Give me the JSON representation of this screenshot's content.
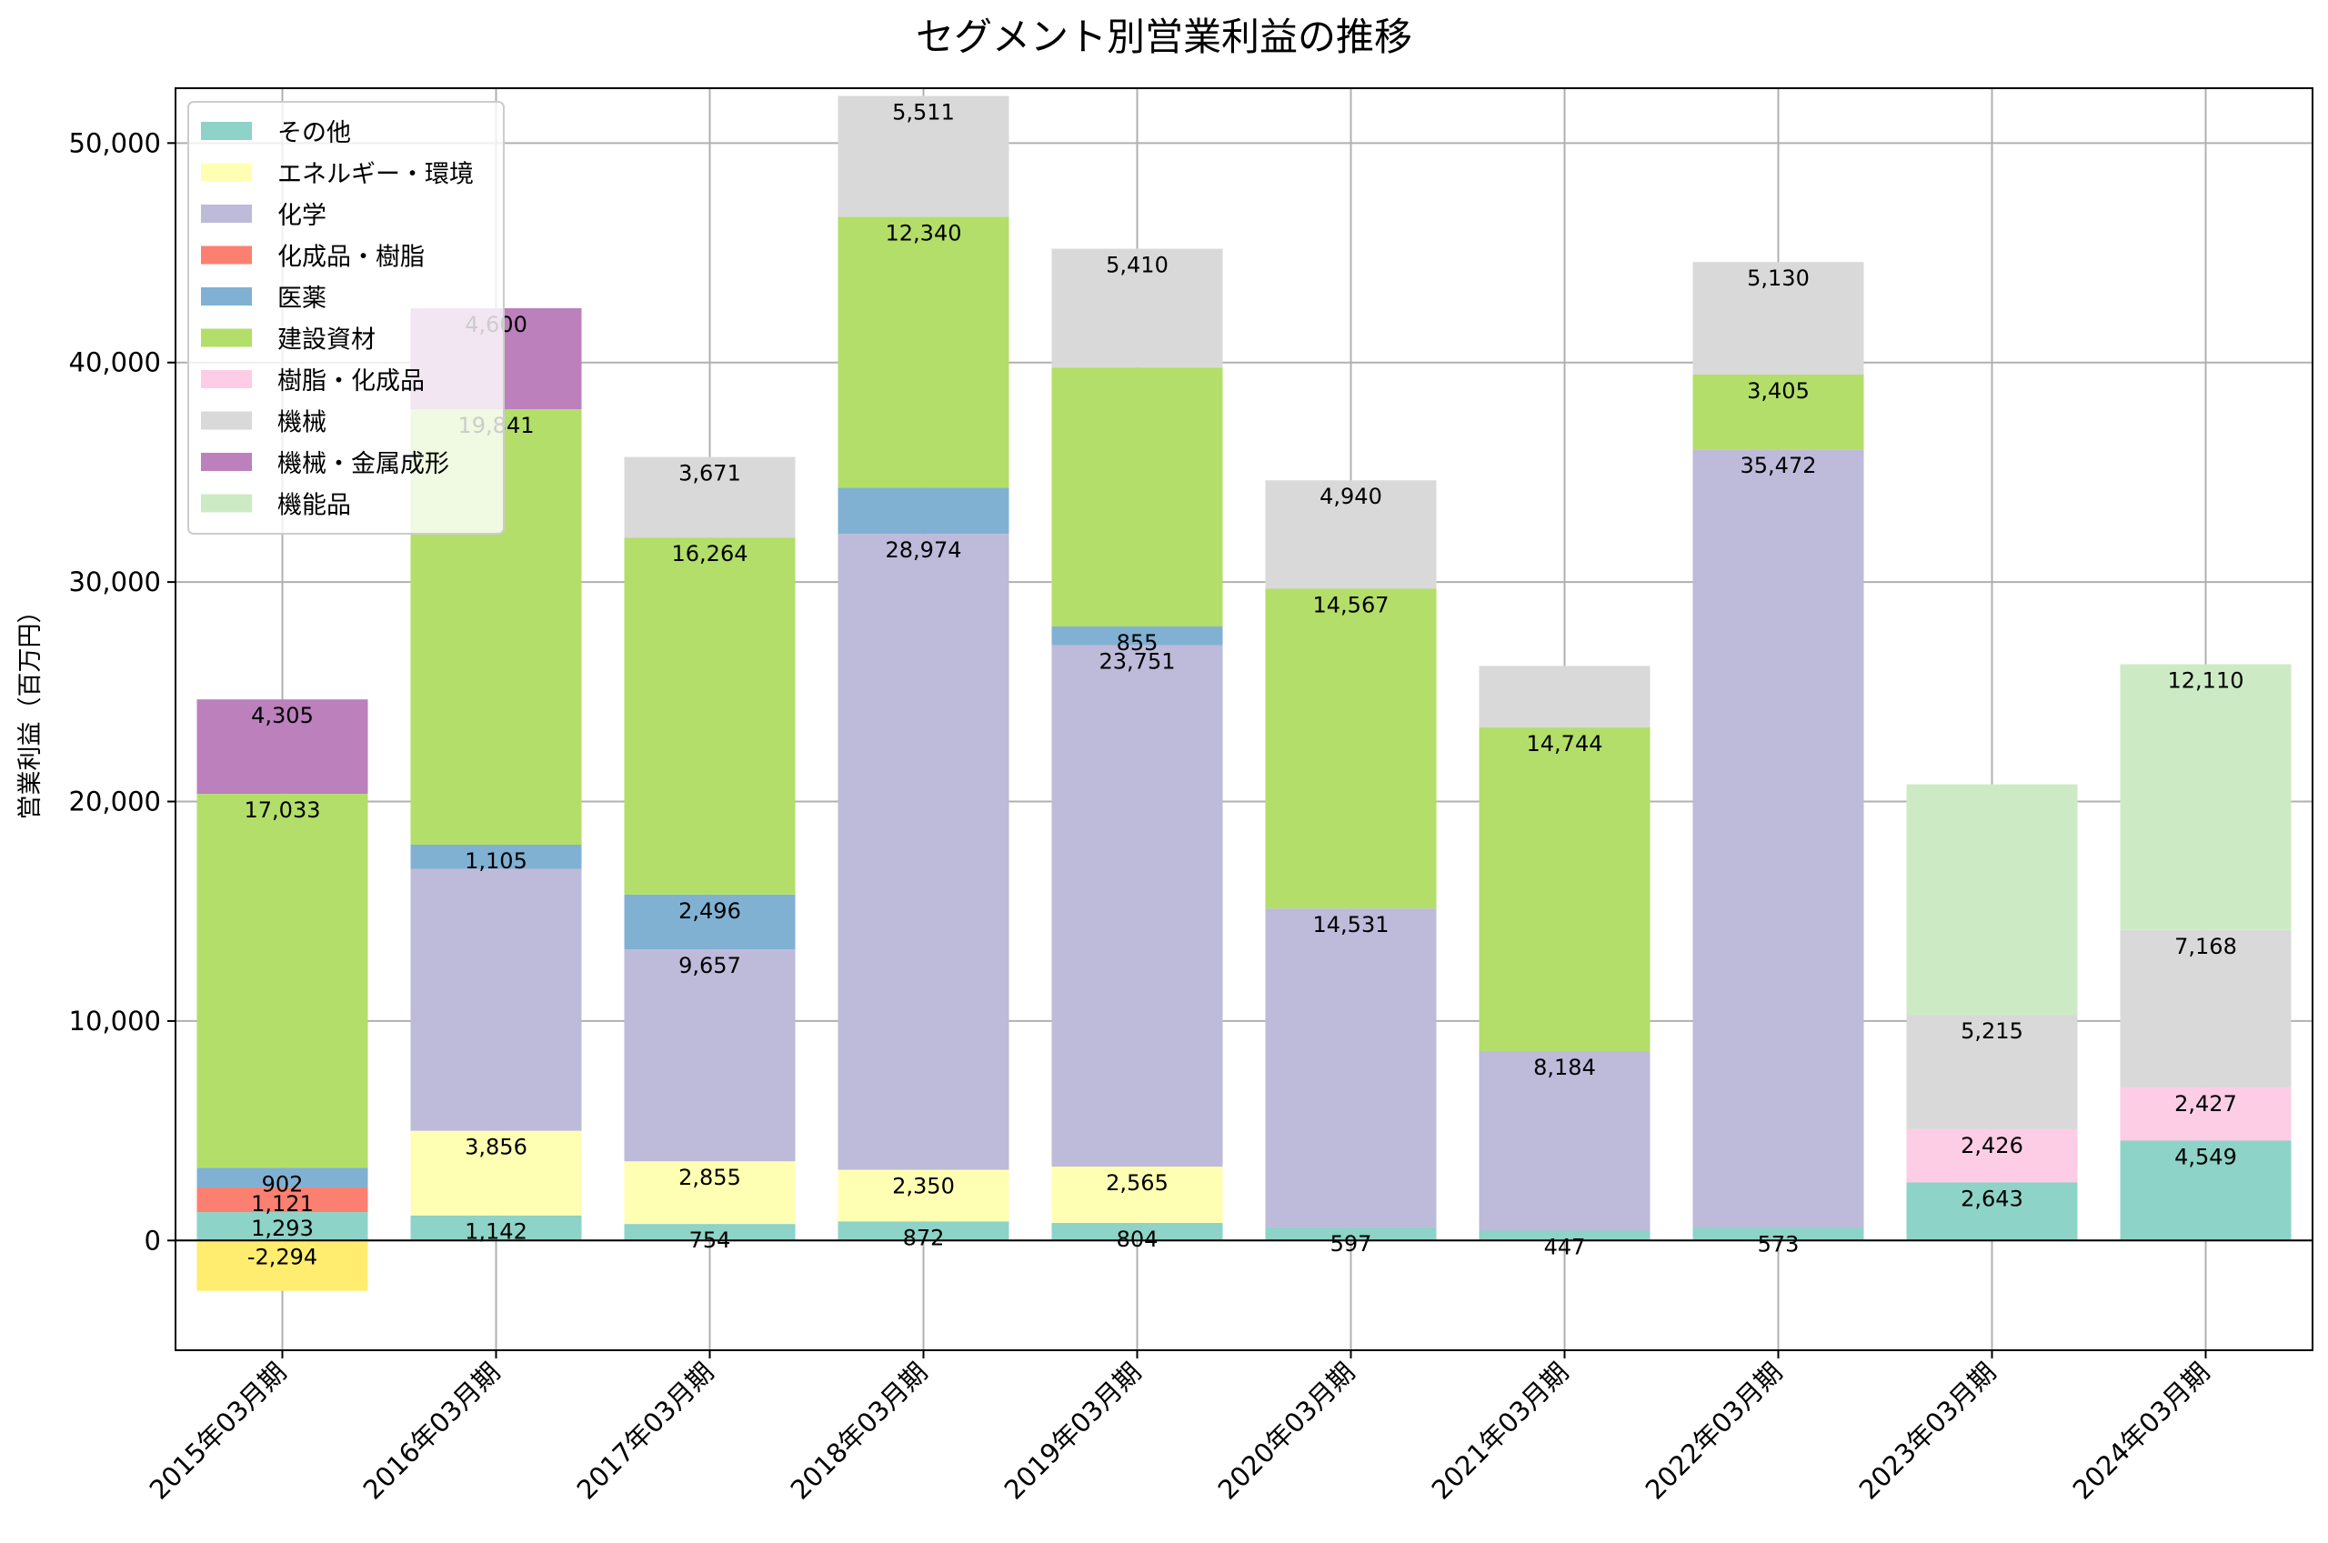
{
  "chart_data": {
    "type": "bar",
    "stacked": true,
    "title": "セグメント別営業利益の推移",
    "xlabel": "",
    "ylabel": "営業利益（百万円）",
    "ylim": [
      -5000,
      52500
    ],
    "yticks": [
      0,
      10000,
      20000,
      30000,
      40000,
      50000
    ],
    "ytick_labels": [
      "0",
      "10,000",
      "20,000",
      "30,000",
      "40,000",
      "50,000"
    ],
    "grid": true,
    "legend_position": "top-left",
    "categories": [
      "2015年03月期",
      "2016年03月期",
      "2017年03月期",
      "2018年03月期",
      "2019年03月期",
      "2020年03月期",
      "2021年03月期",
      "2022年03月期",
      "2023年03月期",
      "2024年03月期"
    ],
    "series": [
      {
        "name": "その他",
        "color": "#8dd3c7",
        "values": [
          1293,
          1142,
          754,
          872,
          804,
          597,
          447,
          573,
          2643,
          4549
        ]
      },
      {
        "name": "エネルギー・環境",
        "color": "#ffffb3",
        "values": [
          -2294,
          3856,
          2855,
          2350,
          2565,
          null,
          null,
          null,
          null,
          null
        ]
      },
      {
        "name": "化学",
        "color": "#bebada",
        "values": [
          null,
          11932,
          9657,
          28974,
          23751,
          14531,
          8184,
          35472,
          null,
          null
        ]
      },
      {
        "name": "化成品・樹脂",
        "color": "#fb8072",
        "values": [
          1121,
          null,
          null,
          null,
          null,
          null,
          null,
          null,
          null,
          null
        ]
      },
      {
        "name": "医薬",
        "color": "#80b1d3",
        "values": [
          902,
          1105,
          2496,
          2100,
          855,
          null,
          null,
          null,
          null,
          null
        ]
      },
      {
        "name": "建設資材",
        "color": "#b3de69",
        "values": [
          17033,
          19841,
          16264,
          12340,
          11800,
          14567,
          14744,
          3405,
          null,
          null
        ]
      },
      {
        "name": "樹脂・化成品",
        "color": "#fccde5",
        "values": [
          null,
          null,
          null,
          null,
          null,
          null,
          null,
          null,
          2426,
          2427
        ]
      },
      {
        "name": "機械",
        "color": "#d9d9d9",
        "values": [
          null,
          null,
          3671,
          5511,
          5410,
          4940,
          2800,
          5130,
          5215,
          7168
        ]
      },
      {
        "name": "機械・金属成形",
        "color": "#bc80bd",
        "values": [
          4305,
          4600,
          null,
          null,
          null,
          null,
          null,
          null,
          null,
          null
        ]
      },
      {
        "name": "機能品",
        "color": "#ccebc5",
        "values": [
          null,
          null,
          null,
          null,
          null,
          null,
          null,
          null,
          10500,
          12110
        ]
      }
    ],
    "data_labels": [
      [
        {
          "series": 0,
          "text": "1,293"
        },
        {
          "series": 1,
          "text": "-2,294"
        },
        {
          "series": 3,
          "text": "1,121"
        },
        {
          "series": 4,
          "text": "902"
        },
        {
          "series": 5,
          "text": "17,033"
        },
        {
          "series": 8,
          "text": "4,305"
        }
      ],
      [
        {
          "series": 0,
          "text": "1,142"
        },
        {
          "series": 1,
          "text": "3,856"
        },
        {
          "series": 4,
          "text": "1,105"
        },
        {
          "series": 5,
          "text": "19,841"
        },
        {
          "series": 8,
          "text": "4,600"
        }
      ],
      [
        {
          "series": 0,
          "text": "754"
        },
        {
          "series": 1,
          "text": "2,855"
        },
        {
          "series": 2,
          "text": "9,657"
        },
        {
          "series": 4,
          "text": "2,496"
        },
        {
          "series": 5,
          "text": "16,264"
        },
        {
          "series": 7,
          "text": "3,671"
        }
      ],
      [
        {
          "series": 0,
          "text": "872"
        },
        {
          "series": 1,
          "text": "2,350"
        },
        {
          "series": 2,
          "text": "28,974"
        },
        {
          "series": 5,
          "text": "12,340"
        },
        {
          "series": 7,
          "text": "5,511"
        }
      ],
      [
        {
          "series": 0,
          "text": "804"
        },
        {
          "series": 1,
          "text": "2,565"
        },
        {
          "series": 2,
          "text": "23,751"
        },
        {
          "series": 4,
          "text": "855"
        },
        {
          "series": 7,
          "text": "5,410"
        }
      ],
      [
        {
          "series": 0,
          "text": "597"
        },
        {
          "series": 2,
          "text": "14,531"
        },
        {
          "series": 5,
          "text": "14,567"
        },
        {
          "series": 7,
          "text": "4,940"
        }
      ],
      [
        {
          "series": 0,
          "text": "447"
        },
        {
          "series": 2,
          "text": "8,184"
        },
        {
          "series": 5,
          "text": "14,744"
        }
      ],
      [
        {
          "series": 0,
          "text": "573"
        },
        {
          "series": 2,
          "text": "35,472"
        },
        {
          "series": 5,
          "text": "3,405"
        },
        {
          "series": 7,
          "text": "5,130"
        }
      ],
      [
        {
          "series": 0,
          "text": "2,643"
        },
        {
          "series": 6,
          "text": "2,426"
        },
        {
          "series": 7,
          "text": "5,215"
        }
      ],
      [
        {
          "series": 0,
          "text": "4,549"
        },
        {
          "series": 6,
          "text": "2,427"
        },
        {
          "series": 7,
          "text": "7,168"
        },
        {
          "series": 9,
          "text": "12,110"
        }
      ]
    ]
  }
}
